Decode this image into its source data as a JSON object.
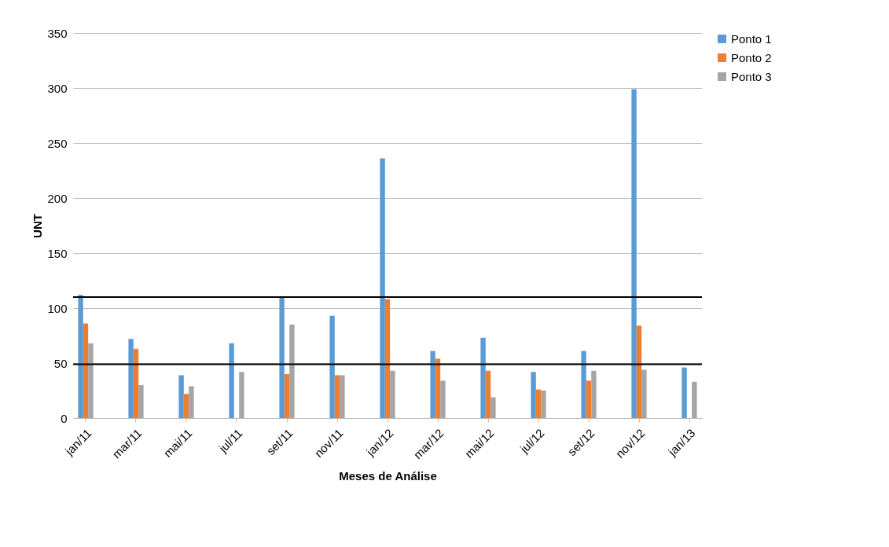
{
  "chart_data": {
    "type": "bar",
    "xlabel": "Meses de Análise",
    "ylabel": "UNT",
    "categories": [
      "jan/11",
      "mar/11",
      "mai/11",
      "jul/11",
      "set/11",
      "nov/11",
      "jan/12",
      "mar/12",
      "mai/12",
      "jul/12",
      "set/12",
      "nov/12",
      "jan/13"
    ],
    "series": [
      {
        "name": "Ponto 1",
        "color": "#5b9bd5",
        "values": [
          112,
          72,
          39,
          68,
          110,
          93,
          236,
          61,
          73,
          42,
          61,
          299,
          46
        ]
      },
      {
        "name": "Ponto 2",
        "color": "#ed7d31",
        "values": [
          86,
          63,
          22,
          null,
          40,
          39,
          108,
          54,
          43,
          26,
          34,
          84,
          null
        ]
      },
      {
        "name": "Ponto 3",
        "color": "#a5a5a5",
        "values": [
          68,
          30,
          29,
          42,
          85,
          39,
          43,
          34,
          19,
          25,
          43,
          44,
          33
        ]
      }
    ],
    "ylim": [
      0,
      350
    ],
    "yticks": [
      0,
      50,
      100,
      150,
      200,
      250,
      300,
      350
    ],
    "grid": "y",
    "legend": "right",
    "ref_lines": [
      {
        "axis": "y",
        "value": 110,
        "color": "#000000"
      },
      {
        "axis": "y",
        "value": 49,
        "color": "#000000"
      }
    ]
  }
}
